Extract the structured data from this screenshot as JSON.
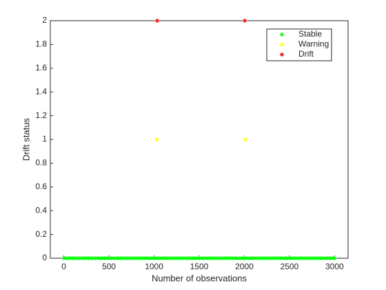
{
  "chart_data": {
    "type": "scatter",
    "xlabel": "Number of observations",
    "ylabel": "Drift status",
    "xlim": [
      -150,
      3150
    ],
    "ylim": [
      0,
      2
    ],
    "xticks": [
      0,
      500,
      1000,
      1500,
      2000,
      2500,
      3000
    ],
    "yticks": [
      0,
      0.2,
      0.4,
      0.6,
      0.8,
      1,
      1.2,
      1.4,
      1.6,
      1.8,
      2
    ],
    "legend_loc": "upper right",
    "series": [
      {
        "name": "Stable",
        "color": "#00ff00",
        "x": [
          0,
          25,
          50,
          75,
          100,
          125,
          150,
          175,
          200,
          225,
          250,
          275,
          300,
          325,
          350,
          375,
          400,
          425,
          450,
          475,
          500,
          525,
          550,
          575,
          600,
          625,
          650,
          675,
          700,
          725,
          750,
          775,
          800,
          825,
          850,
          875,
          900,
          925,
          950,
          975,
          1000,
          1025,
          1050,
          1075,
          1100,
          1125,
          1150,
          1175,
          1200,
          1225,
          1250,
          1275,
          1300,
          1325,
          1350,
          1375,
          1400,
          1425,
          1450,
          1475,
          1500,
          1525,
          1550,
          1575,
          1600,
          1625,
          1650,
          1675,
          1700,
          1725,
          1750,
          1775,
          1800,
          1825,
          1850,
          1875,
          1900,
          1925,
          1950,
          1975,
          2000,
          2025,
          2050,
          2075,
          2100,
          2125,
          2150,
          2175,
          2200,
          2225,
          2250,
          2275,
          2300,
          2325,
          2350,
          2375,
          2400,
          2425,
          2450,
          2475,
          2500,
          2525,
          2550,
          2575,
          2600,
          2625,
          2650,
          2675,
          2700,
          2725,
          2750,
          2775,
          2800,
          2825,
          2850,
          2875,
          2900,
          2925,
          2950,
          2975,
          3000
        ],
        "values": [
          0,
          0,
          0,
          0,
          0,
          0,
          0,
          0,
          0,
          0,
          0,
          0,
          0,
          0,
          0,
          0,
          0,
          0,
          0,
          0,
          0,
          0,
          0,
          0,
          0,
          0,
          0,
          0,
          0,
          0,
          0,
          0,
          0,
          0,
          0,
          0,
          0,
          0,
          0,
          0,
          0,
          0,
          0,
          0,
          0,
          0,
          0,
          0,
          0,
          0,
          0,
          0,
          0,
          0,
          0,
          0,
          0,
          0,
          0,
          0,
          0,
          0,
          0,
          0,
          0,
          0,
          0,
          0,
          0,
          0,
          0,
          0,
          0,
          0,
          0,
          0,
          0,
          0,
          0,
          0,
          0,
          0,
          0,
          0,
          0,
          0,
          0,
          0,
          0,
          0,
          0,
          0,
          0,
          0,
          0,
          0,
          0,
          0,
          0,
          0,
          0,
          0,
          0,
          0,
          0,
          0,
          0,
          0,
          0,
          0,
          0,
          0,
          0,
          0,
          0,
          0,
          0,
          0,
          0,
          0,
          0
        ]
      },
      {
        "name": "Warning",
        "color": "#ffff00",
        "x": [
          1030,
          2010
        ],
        "values": [
          1,
          1
        ]
      },
      {
        "name": "Drift",
        "color": "#ff0000",
        "x": [
          1035,
          2005
        ],
        "values": [
          2,
          2
        ]
      }
    ]
  }
}
